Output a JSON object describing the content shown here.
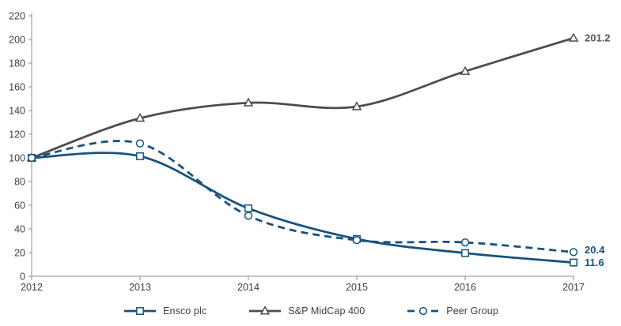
{
  "chart_data": {
    "type": "line",
    "title": "",
    "xlabel": "",
    "ylabel": "",
    "x_labels": [
      "2012",
      "2013",
      "2014",
      "2015",
      "2016",
      "2017"
    ],
    "series": [
      {
        "name": "Ensco plc",
        "values": [
          100,
          101.4,
          57.4,
          31.5,
          19.6,
          11.6
        ],
        "color": "#17537E",
        "label_color": "#17537E",
        "style": "solid",
        "marker": "square",
        "end_label": "11.6"
      },
      {
        "name": "S&P MidCap 400",
        "values": [
          100,
          133.5,
          146.5,
          143.3,
          173.1,
          201.2
        ],
        "color": "#4D4D4D",
        "label_color": "#595959",
        "style": "solid",
        "marker": "triangle",
        "end_label": "201.2"
      },
      {
        "name": "Peer Group",
        "values": [
          100,
          112.2,
          51.1,
          30.5,
          28.6,
          20.4
        ],
        "color": "#17537E",
        "label_color": "#17537E",
        "style": "dashed",
        "marker": "circle",
        "end_label": "20.4"
      }
    ],
    "y_ticks": [
      0,
      20,
      40,
      60,
      80,
      100,
      120,
      140,
      160,
      180,
      200,
      220
    ],
    "ylim": [
      0,
      220
    ],
    "ytick_step": 20,
    "grid": false,
    "smoothed": true,
    "legend_position": "bottom",
    "axis_color": "#8C8C8C",
    "tick_label_color": "#404040",
    "background": "#FFFFFF"
  }
}
